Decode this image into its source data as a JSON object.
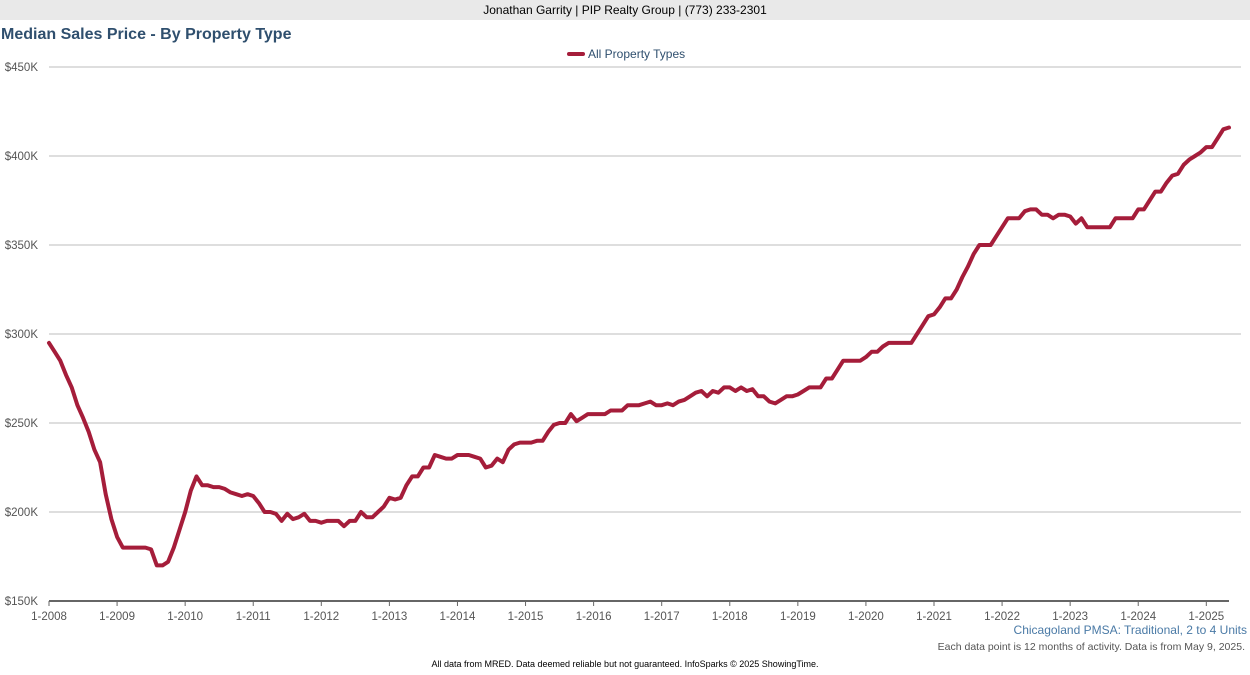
{
  "header": {
    "agent_line": "Jonathan Garrity | PIP Realty Group | (773) 233-2301"
  },
  "chart_data": {
    "type": "line",
    "title": "Median Sales Price - By Property Type",
    "subtitle": "Chicagoland PMSA: Traditional, 2 to 4 Units",
    "note": "Each data point is 12 months of activity. Data is from May 9, 2025.",
    "footer": "All data from MRED. Data deemed reliable but not guaranteed. InfoSparks © 2025 ShowingTime.",
    "legend_position": "top-center",
    "grid": true,
    "xlabel": "",
    "ylabel": "",
    "ylim": [
      150000,
      450000
    ],
    "y_ticks": [
      150000,
      200000,
      250000,
      300000,
      350000,
      400000,
      450000
    ],
    "y_tick_labels": [
      "$150K",
      "$200K",
      "$250K",
      "$300K",
      "$350K",
      "$400K",
      "$450K"
    ],
    "x_range": [
      "2008-01",
      "2025-04"
    ],
    "x_ticks": [
      "2008-01",
      "2009-01",
      "2010-01",
      "2011-01",
      "2012-01",
      "2013-01",
      "2014-01",
      "2015-01",
      "2016-01",
      "2017-01",
      "2018-01",
      "2019-01",
      "2020-01",
      "2021-01",
      "2022-01",
      "2023-01",
      "2024-01",
      "2025-01"
    ],
    "x_tick_labels": [
      "1-2008",
      "1-2009",
      "1-2010",
      "1-2011",
      "1-2012",
      "1-2013",
      "1-2014",
      "1-2015",
      "1-2016",
      "1-2017",
      "1-2018",
      "1-2019",
      "1-2020",
      "1-2021",
      "1-2022",
      "1-2023",
      "1-2024",
      "1-2025"
    ],
    "series": [
      {
        "name": "All Property Types",
        "color": "#a51d3a",
        "points": [
          [
            "2008-01",
            295000
          ],
          [
            "2008-02",
            290000
          ],
          [
            "2008-03",
            285000
          ],
          [
            "2008-04",
            277000
          ],
          [
            "2008-05",
            270000
          ],
          [
            "2008-06",
            260000
          ],
          [
            "2008-07",
            253000
          ],
          [
            "2008-08",
            245000
          ],
          [
            "2008-09",
            235000
          ],
          [
            "2008-10",
            228000
          ],
          [
            "2008-11",
            210000
          ],
          [
            "2008-12",
            196000
          ],
          [
            "2009-01",
            186000
          ],
          [
            "2009-02",
            180000
          ],
          [
            "2009-03",
            180000
          ],
          [
            "2009-04",
            180000
          ],
          [
            "2009-05",
            180000
          ],
          [
            "2009-06",
            180000
          ],
          [
            "2009-07",
            179000
          ],
          [
            "2009-08",
            170000
          ],
          [
            "2009-09",
            170000
          ],
          [
            "2009-10",
            172000
          ],
          [
            "2009-11",
            180000
          ],
          [
            "2009-12",
            190000
          ],
          [
            "2010-01",
            200000
          ],
          [
            "2010-02",
            212000
          ],
          [
            "2010-03",
            220000
          ],
          [
            "2010-04",
            215000
          ],
          [
            "2010-05",
            215000
          ],
          [
            "2010-06",
            214000
          ],
          [
            "2010-07",
            214000
          ],
          [
            "2010-08",
            213000
          ],
          [
            "2010-09",
            211000
          ],
          [
            "2010-10",
            210000
          ],
          [
            "2010-11",
            209000
          ],
          [
            "2010-12",
            210000
          ],
          [
            "2011-01",
            209000
          ],
          [
            "2011-02",
            205000
          ],
          [
            "2011-03",
            200000
          ],
          [
            "2011-04",
            200000
          ],
          [
            "2011-05",
            199000
          ],
          [
            "2011-06",
            195000
          ],
          [
            "2011-07",
            199000
          ],
          [
            "2011-08",
            196000
          ],
          [
            "2011-09",
            197000
          ],
          [
            "2011-10",
            199000
          ],
          [
            "2011-11",
            195000
          ],
          [
            "2011-12",
            195000
          ],
          [
            "2012-01",
            194000
          ],
          [
            "2012-02",
            195000
          ],
          [
            "2012-03",
            195000
          ],
          [
            "2012-04",
            195000
          ],
          [
            "2012-05",
            192000
          ],
          [
            "2012-06",
            195000
          ],
          [
            "2012-07",
            195000
          ],
          [
            "2012-08",
            200000
          ],
          [
            "2012-09",
            197000
          ],
          [
            "2012-10",
            197000
          ],
          [
            "2012-11",
            200000
          ],
          [
            "2012-12",
            203000
          ],
          [
            "2013-01",
            208000
          ],
          [
            "2013-02",
            207000
          ],
          [
            "2013-03",
            208000
          ],
          [
            "2013-04",
            215000
          ],
          [
            "2013-05",
            220000
          ],
          [
            "2013-06",
            220000
          ],
          [
            "2013-07",
            225000
          ],
          [
            "2013-08",
            225000
          ],
          [
            "2013-09",
            232000
          ],
          [
            "2013-10",
            231000
          ],
          [
            "2013-11",
            230000
          ],
          [
            "2013-12",
            230000
          ],
          [
            "2014-01",
            232000
          ],
          [
            "2014-02",
            232000
          ],
          [
            "2014-03",
            232000
          ],
          [
            "2014-04",
            231000
          ],
          [
            "2014-05",
            230000
          ],
          [
            "2014-06",
            225000
          ],
          [
            "2014-07",
            226000
          ],
          [
            "2014-08",
            230000
          ],
          [
            "2014-09",
            228000
          ],
          [
            "2014-10",
            235000
          ],
          [
            "2014-11",
            238000
          ],
          [
            "2014-12",
            239000
          ],
          [
            "2015-01",
            239000
          ],
          [
            "2015-02",
            239000
          ],
          [
            "2015-03",
            240000
          ],
          [
            "2015-04",
            240000
          ],
          [
            "2015-05",
            245000
          ],
          [
            "2015-06",
            249000
          ],
          [
            "2015-07",
            250000
          ],
          [
            "2015-08",
            250000
          ],
          [
            "2015-09",
            255000
          ],
          [
            "2015-10",
            251000
          ],
          [
            "2015-11",
            253000
          ],
          [
            "2015-12",
            255000
          ],
          [
            "2016-01",
            255000
          ],
          [
            "2016-02",
            255000
          ],
          [
            "2016-03",
            255000
          ],
          [
            "2016-04",
            257000
          ],
          [
            "2016-05",
            257000
          ],
          [
            "2016-06",
            257000
          ],
          [
            "2016-07",
            260000
          ],
          [
            "2016-08",
            260000
          ],
          [
            "2016-09",
            260000
          ],
          [
            "2016-10",
            261000
          ],
          [
            "2016-11",
            262000
          ],
          [
            "2016-12",
            260000
          ],
          [
            "2017-01",
            260000
          ],
          [
            "2017-02",
            261000
          ],
          [
            "2017-03",
            260000
          ],
          [
            "2017-04",
            262000
          ],
          [
            "2017-05",
            263000
          ],
          [
            "2017-06",
            265000
          ],
          [
            "2017-07",
            267000
          ],
          [
            "2017-08",
            268000
          ],
          [
            "2017-09",
            265000
          ],
          [
            "2017-10",
            268000
          ],
          [
            "2017-11",
            267000
          ],
          [
            "2017-12",
            270000
          ],
          [
            "2018-01",
            270000
          ],
          [
            "2018-02",
            268000
          ],
          [
            "2018-03",
            270000
          ],
          [
            "2018-04",
            268000
          ],
          [
            "2018-05",
            269000
          ],
          [
            "2018-06",
            265000
          ],
          [
            "2018-07",
            265000
          ],
          [
            "2018-08",
            262000
          ],
          [
            "2018-09",
            261000
          ],
          [
            "2018-10",
            263000
          ],
          [
            "2018-11",
            265000
          ],
          [
            "2018-12",
            265000
          ],
          [
            "2019-01",
            266000
          ],
          [
            "2019-02",
            268000
          ],
          [
            "2019-03",
            270000
          ],
          [
            "2019-04",
            270000
          ],
          [
            "2019-05",
            270000
          ],
          [
            "2019-06",
            275000
          ],
          [
            "2019-07",
            275000
          ],
          [
            "2019-08",
            280000
          ],
          [
            "2019-09",
            285000
          ],
          [
            "2019-10",
            285000
          ],
          [
            "2019-11",
            285000
          ],
          [
            "2019-12",
            285000
          ],
          [
            "2020-01",
            287000
          ],
          [
            "2020-02",
            290000
          ],
          [
            "2020-03",
            290000
          ],
          [
            "2020-04",
            293000
          ],
          [
            "2020-05",
            295000
          ],
          [
            "2020-06",
            295000
          ],
          [
            "2020-07",
            295000
          ],
          [
            "2020-08",
            295000
          ],
          [
            "2020-09",
            295000
          ],
          [
            "2020-10",
            300000
          ],
          [
            "2020-11",
            305000
          ],
          [
            "2020-12",
            310000
          ],
          [
            "2021-01",
            311000
          ],
          [
            "2021-02",
            315000
          ],
          [
            "2021-03",
            320000
          ],
          [
            "2021-04",
            320000
          ],
          [
            "2021-05",
            325000
          ],
          [
            "2021-06",
            332000
          ],
          [
            "2021-07",
            338000
          ],
          [
            "2021-08",
            345000
          ],
          [
            "2021-09",
            350000
          ],
          [
            "2021-10",
            350000
          ],
          [
            "2021-11",
            350000
          ],
          [
            "2021-12",
            355000
          ],
          [
            "2022-01",
            360000
          ],
          [
            "2022-02",
            365000
          ],
          [
            "2022-03",
            365000
          ],
          [
            "2022-04",
            365000
          ],
          [
            "2022-05",
            369000
          ],
          [
            "2022-06",
            370000
          ],
          [
            "2022-07",
            370000
          ],
          [
            "2022-08",
            367000
          ],
          [
            "2022-09",
            367000
          ],
          [
            "2022-10",
            365000
          ],
          [
            "2022-11",
            367000
          ],
          [
            "2022-12",
            367000
          ],
          [
            "2023-01",
            366000
          ],
          [
            "2023-02",
            362000
          ],
          [
            "2023-03",
            365000
          ],
          [
            "2023-04",
            360000
          ],
          [
            "2023-05",
            360000
          ],
          [
            "2023-06",
            360000
          ],
          [
            "2023-07",
            360000
          ],
          [
            "2023-08",
            360000
          ],
          [
            "2023-09",
            365000
          ],
          [
            "2023-10",
            365000
          ],
          [
            "2023-11",
            365000
          ],
          [
            "2023-12",
            365000
          ],
          [
            "2024-01",
            370000
          ],
          [
            "2024-02",
            370000
          ],
          [
            "2024-03",
            375000
          ],
          [
            "2024-04",
            380000
          ],
          [
            "2024-05",
            380000
          ],
          [
            "2024-06",
            385000
          ],
          [
            "2024-07",
            389000
          ],
          [
            "2024-08",
            390000
          ],
          [
            "2024-09",
            395000
          ],
          [
            "2024-10",
            398000
          ],
          [
            "2024-11",
            400000
          ],
          [
            "2024-12",
            402000
          ],
          [
            "2025-01",
            405000
          ],
          [
            "2025-02",
            405000
          ],
          [
            "2025-03",
            410000
          ],
          [
            "2025-04",
            415000
          ],
          [
            "2025-05",
            416000
          ]
        ]
      }
    ]
  }
}
